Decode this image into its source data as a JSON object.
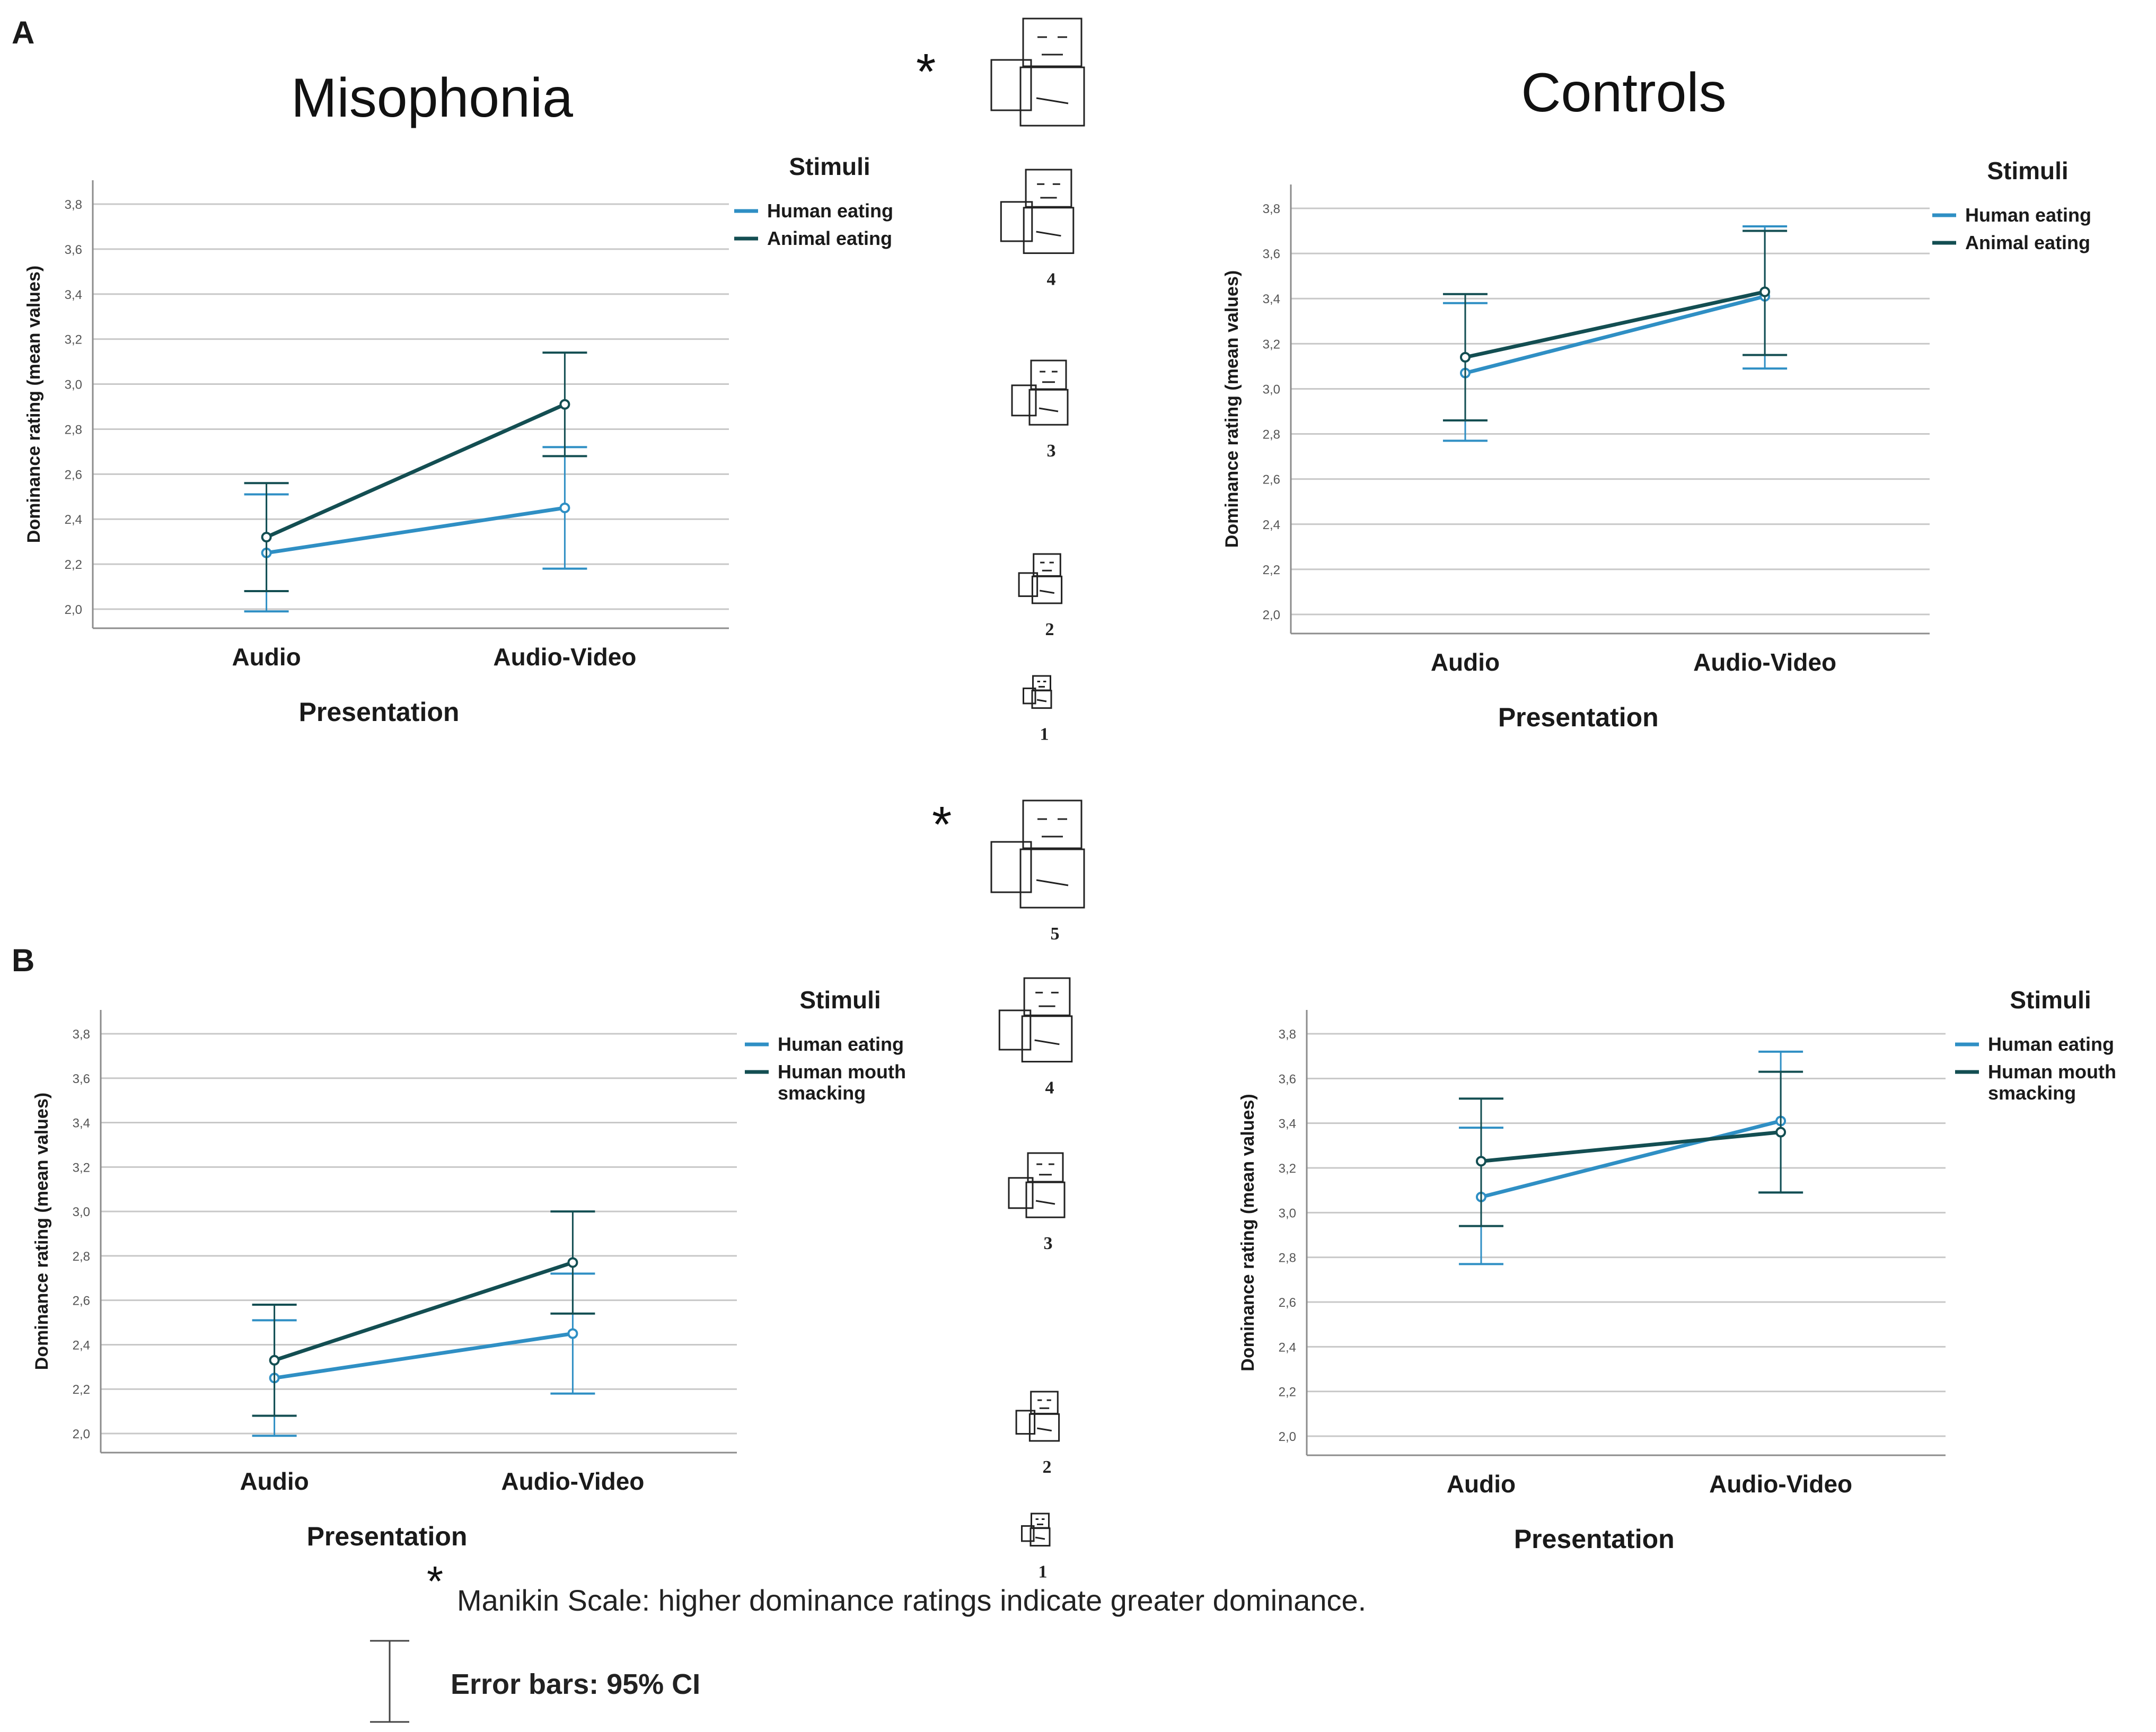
{
  "panels": {
    "a": "A",
    "b": "B"
  },
  "titles": {
    "misophonia": "Misophonia",
    "controls": "Controls"
  },
  "colors": {
    "human": "#2f8fc4",
    "other": "#134e52",
    "grid": "#c8c8c8",
    "axis": "#8c8c8c",
    "text": "#1a1a1a"
  },
  "manikin": {
    "asterisk": "*",
    "levels": [
      "5",
      "4",
      "3",
      "2",
      "1"
    ],
    "icon": "self-assessment-manikin-icon"
  },
  "footnote": {
    "asterisk": "*",
    "text": "Manikin Scale: higher dominance ratings indicate greater dominance.",
    "error_bars": "Error bars: 95% CI"
  },
  "chart_data": [
    {
      "id": "A-misophonia",
      "type": "line",
      "title": "",
      "xlabel": "Presentation",
      "ylabel": "Dominance rating (mean values)",
      "categories": [
        "Audio",
        "Audio-Video"
      ],
      "ylim": [
        2.0,
        3.8
      ],
      "yticks": [
        "2,0",
        "2,2",
        "2,4",
        "2,6",
        "2,8",
        "3,0",
        "3,2",
        "3,4",
        "3,6",
        "3,8"
      ],
      "grid": true,
      "legend_title": "Stimuli",
      "legend_position": "top-right",
      "series": [
        {
          "name": "Human eating",
          "color": "#2f8fc4",
          "values": [
            2.25,
            2.45
          ],
          "ci_low": [
            1.99,
            2.18
          ],
          "ci_high": [
            2.51,
            2.72
          ]
        },
        {
          "name": "Animal eating",
          "color": "#134e52",
          "values": [
            2.32,
            2.91
          ],
          "ci_low": [
            2.08,
            2.68
          ],
          "ci_high": [
            2.56,
            3.14
          ]
        }
      ]
    },
    {
      "id": "A-controls",
      "type": "line",
      "title": "",
      "xlabel": "Presentation",
      "ylabel": "Dominance rating (mean values)",
      "categories": [
        "Audio",
        "Audio-Video"
      ],
      "ylim": [
        2.0,
        3.8
      ],
      "yticks": [
        "2,0",
        "2,2",
        "2,4",
        "2,6",
        "2,8",
        "3,0",
        "3,2",
        "3,4",
        "3,6",
        "3,8"
      ],
      "grid": true,
      "legend_title": "Stimuli",
      "legend_position": "top-right",
      "series": [
        {
          "name": "Human eating",
          "color": "#2f8fc4",
          "values": [
            3.07,
            3.41
          ],
          "ci_low": [
            2.77,
            3.09
          ],
          "ci_high": [
            3.38,
            3.72
          ]
        },
        {
          "name": "Animal eating",
          "color": "#134e52",
          "values": [
            3.14,
            3.43
          ],
          "ci_low": [
            2.86,
            3.15
          ],
          "ci_high": [
            3.42,
            3.7
          ]
        }
      ]
    },
    {
      "id": "B-misophonia",
      "type": "line",
      "title": "",
      "xlabel": "Presentation",
      "ylabel": "Dominance rating (mean values)",
      "categories": [
        "Audio",
        "Audio-Video"
      ],
      "ylim": [
        2.0,
        3.8
      ],
      "yticks": [
        "2,0",
        "2,2",
        "2,4",
        "2,6",
        "2,8",
        "3,0",
        "3,2",
        "3,4",
        "3,6",
        "3,8"
      ],
      "grid": true,
      "legend_title": "Stimuli",
      "legend_position": "top-right",
      "series": [
        {
          "name": "Human eating",
          "color": "#2f8fc4",
          "values": [
            2.25,
            2.45
          ],
          "ci_low": [
            1.99,
            2.18
          ],
          "ci_high": [
            2.51,
            2.72
          ]
        },
        {
          "name": "Human mouth smacking",
          "color": "#134e52",
          "values": [
            2.33,
            2.77
          ],
          "ci_low": [
            2.08,
            2.54
          ],
          "ci_high": [
            2.58,
            3.0
          ]
        }
      ]
    },
    {
      "id": "B-controls",
      "type": "line",
      "title": "",
      "xlabel": "Presentation",
      "ylabel": "Dominance rating (mean values)",
      "categories": [
        "Audio",
        "Audio-Video"
      ],
      "ylim": [
        2.0,
        3.8
      ],
      "yticks": [
        "2,0",
        "2,2",
        "2,4",
        "2,6",
        "2,8",
        "3,0",
        "3,2",
        "3,4",
        "3,6",
        "3,8"
      ],
      "grid": true,
      "legend_title": "Stimuli",
      "legend_position": "top-right",
      "series": [
        {
          "name": "Human eating",
          "color": "#2f8fc4",
          "values": [
            3.07,
            3.41
          ],
          "ci_low": [
            2.77,
            3.09
          ],
          "ci_high": [
            3.38,
            3.72
          ]
        },
        {
          "name": "Human mouth smacking",
          "color": "#134e52",
          "values": [
            3.23,
            3.36
          ],
          "ci_low": [
            2.94,
            3.09
          ],
          "ci_high": [
            3.51,
            3.63
          ]
        }
      ]
    }
  ]
}
